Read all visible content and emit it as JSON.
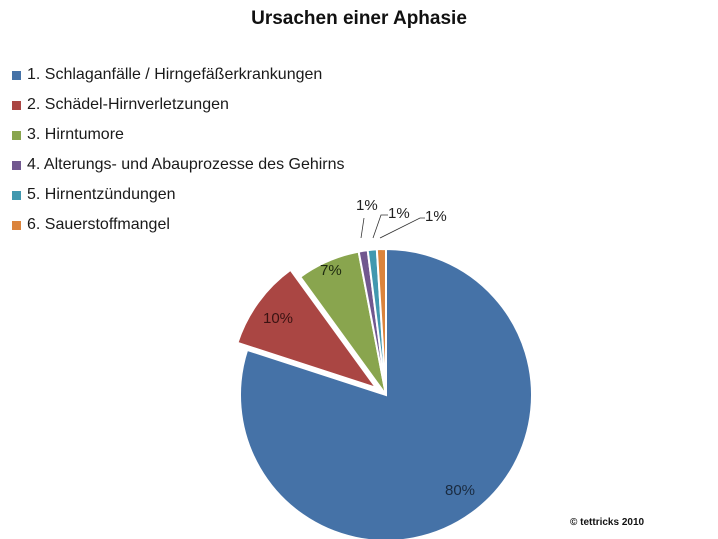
{
  "chart_data": {
    "type": "pie",
    "title": "Ursachen einer Aphasie",
    "categories": [
      "1. Schlaganfälle / Hirngefäßerkrankungen",
      "2. Schädel-Hirnverletzungen",
      "3. Hirntumore",
      "4. Alterungs- und Abauprozesse des Gehirns",
      "5. Hirnentzündungen",
      "6. Sauerstoffmangel"
    ],
    "values": [
      80,
      10,
      7,
      1,
      1,
      1
    ],
    "labels": [
      "80%",
      "10%",
      "7%",
      "1%",
      "1%",
      "1%"
    ],
    "colors": [
      "#4572a7",
      "#aa4643",
      "#89a54e",
      "#71588f",
      "#4198af",
      "#db843d"
    ],
    "exploded": [
      "2. Schädel-Hirnverletzungen"
    ],
    "legend_position": "top-left"
  },
  "title": "Ursachen einer Aphasie",
  "legend": [
    {
      "label": "1. Schlaganfälle / Hirngefäßerkrankungen",
      "color": "#4572a7"
    },
    {
      "label": "2. Schädel-Hirnverletzungen",
      "color": "#aa4643"
    },
    {
      "label": "3. Hirntumore",
      "color": "#89a54e"
    },
    {
      "label": "4. Alterungs- und Abauprozesse des Gehirns",
      "color": "#71588f"
    },
    {
      "label": "5. Hirnentzündungen",
      "color": "#4198af"
    },
    {
      "label": "6. Sauerstoffmangel",
      "color": "#db843d"
    }
  ],
  "slice_labels": [
    "80%",
    "10%",
    "7%",
    "1%",
    "1%",
    "1%"
  ],
  "footer": "© tettricks 2010"
}
